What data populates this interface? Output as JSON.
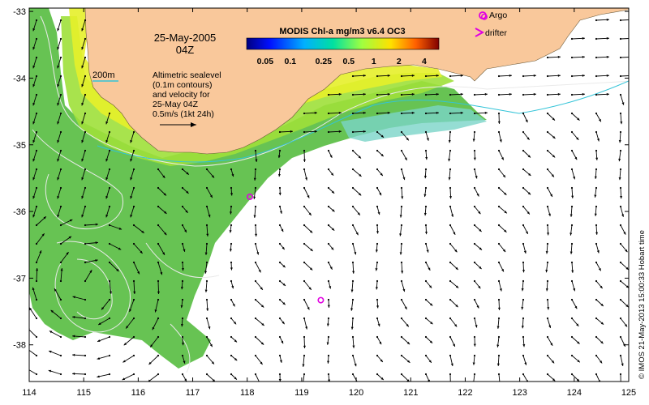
{
  "map": {
    "date_line1": "25-May-2005",
    "date_line2": "04Z",
    "colorbar_title": "MODIS Chl-a mg/m3 v6.4 OC3",
    "colorbar_ticks": [
      "0.05",
      "0.1",
      "0.25",
      "0.5",
      "1",
      "2",
      "4"
    ],
    "bathymetry_label": "200m",
    "altimetry_note": [
      "Altimetric sealevel",
      "(0.1m contours)",
      "and velocity for",
      "25-May 04Z",
      "0.5m/s (1kt 24h)"
    ],
    "legend": {
      "argo": "Argo",
      "drifter": "drifter"
    },
    "credit": "© IMOS 21-May-2013 15:00:33 Hobart time",
    "x_ticks": [
      "114",
      "115",
      "116",
      "117",
      "118",
      "119",
      "120",
      "121",
      "122",
      "123",
      "124",
      "125"
    ],
    "y_ticks": [
      "-33",
      "-34",
      "-35",
      "-36",
      "-37",
      "-38"
    ],
    "x_range": [
      114,
      125
    ],
    "y_range": [
      -38.55,
      -32.95
    ],
    "argo_floats": [
      {
        "lon": 118.05,
        "lat": -35.78
      },
      {
        "lon": 119.35,
        "lat": -37.33
      },
      {
        "lon": 122.35,
        "lat": -33.08
      }
    ],
    "colors": {
      "land": "#f9c89b",
      "ocean": "#ffffff",
      "argo": "#e100e1",
      "bathymetry": "#33c4d8",
      "contour": "#e8e8e8"
    }
  }
}
